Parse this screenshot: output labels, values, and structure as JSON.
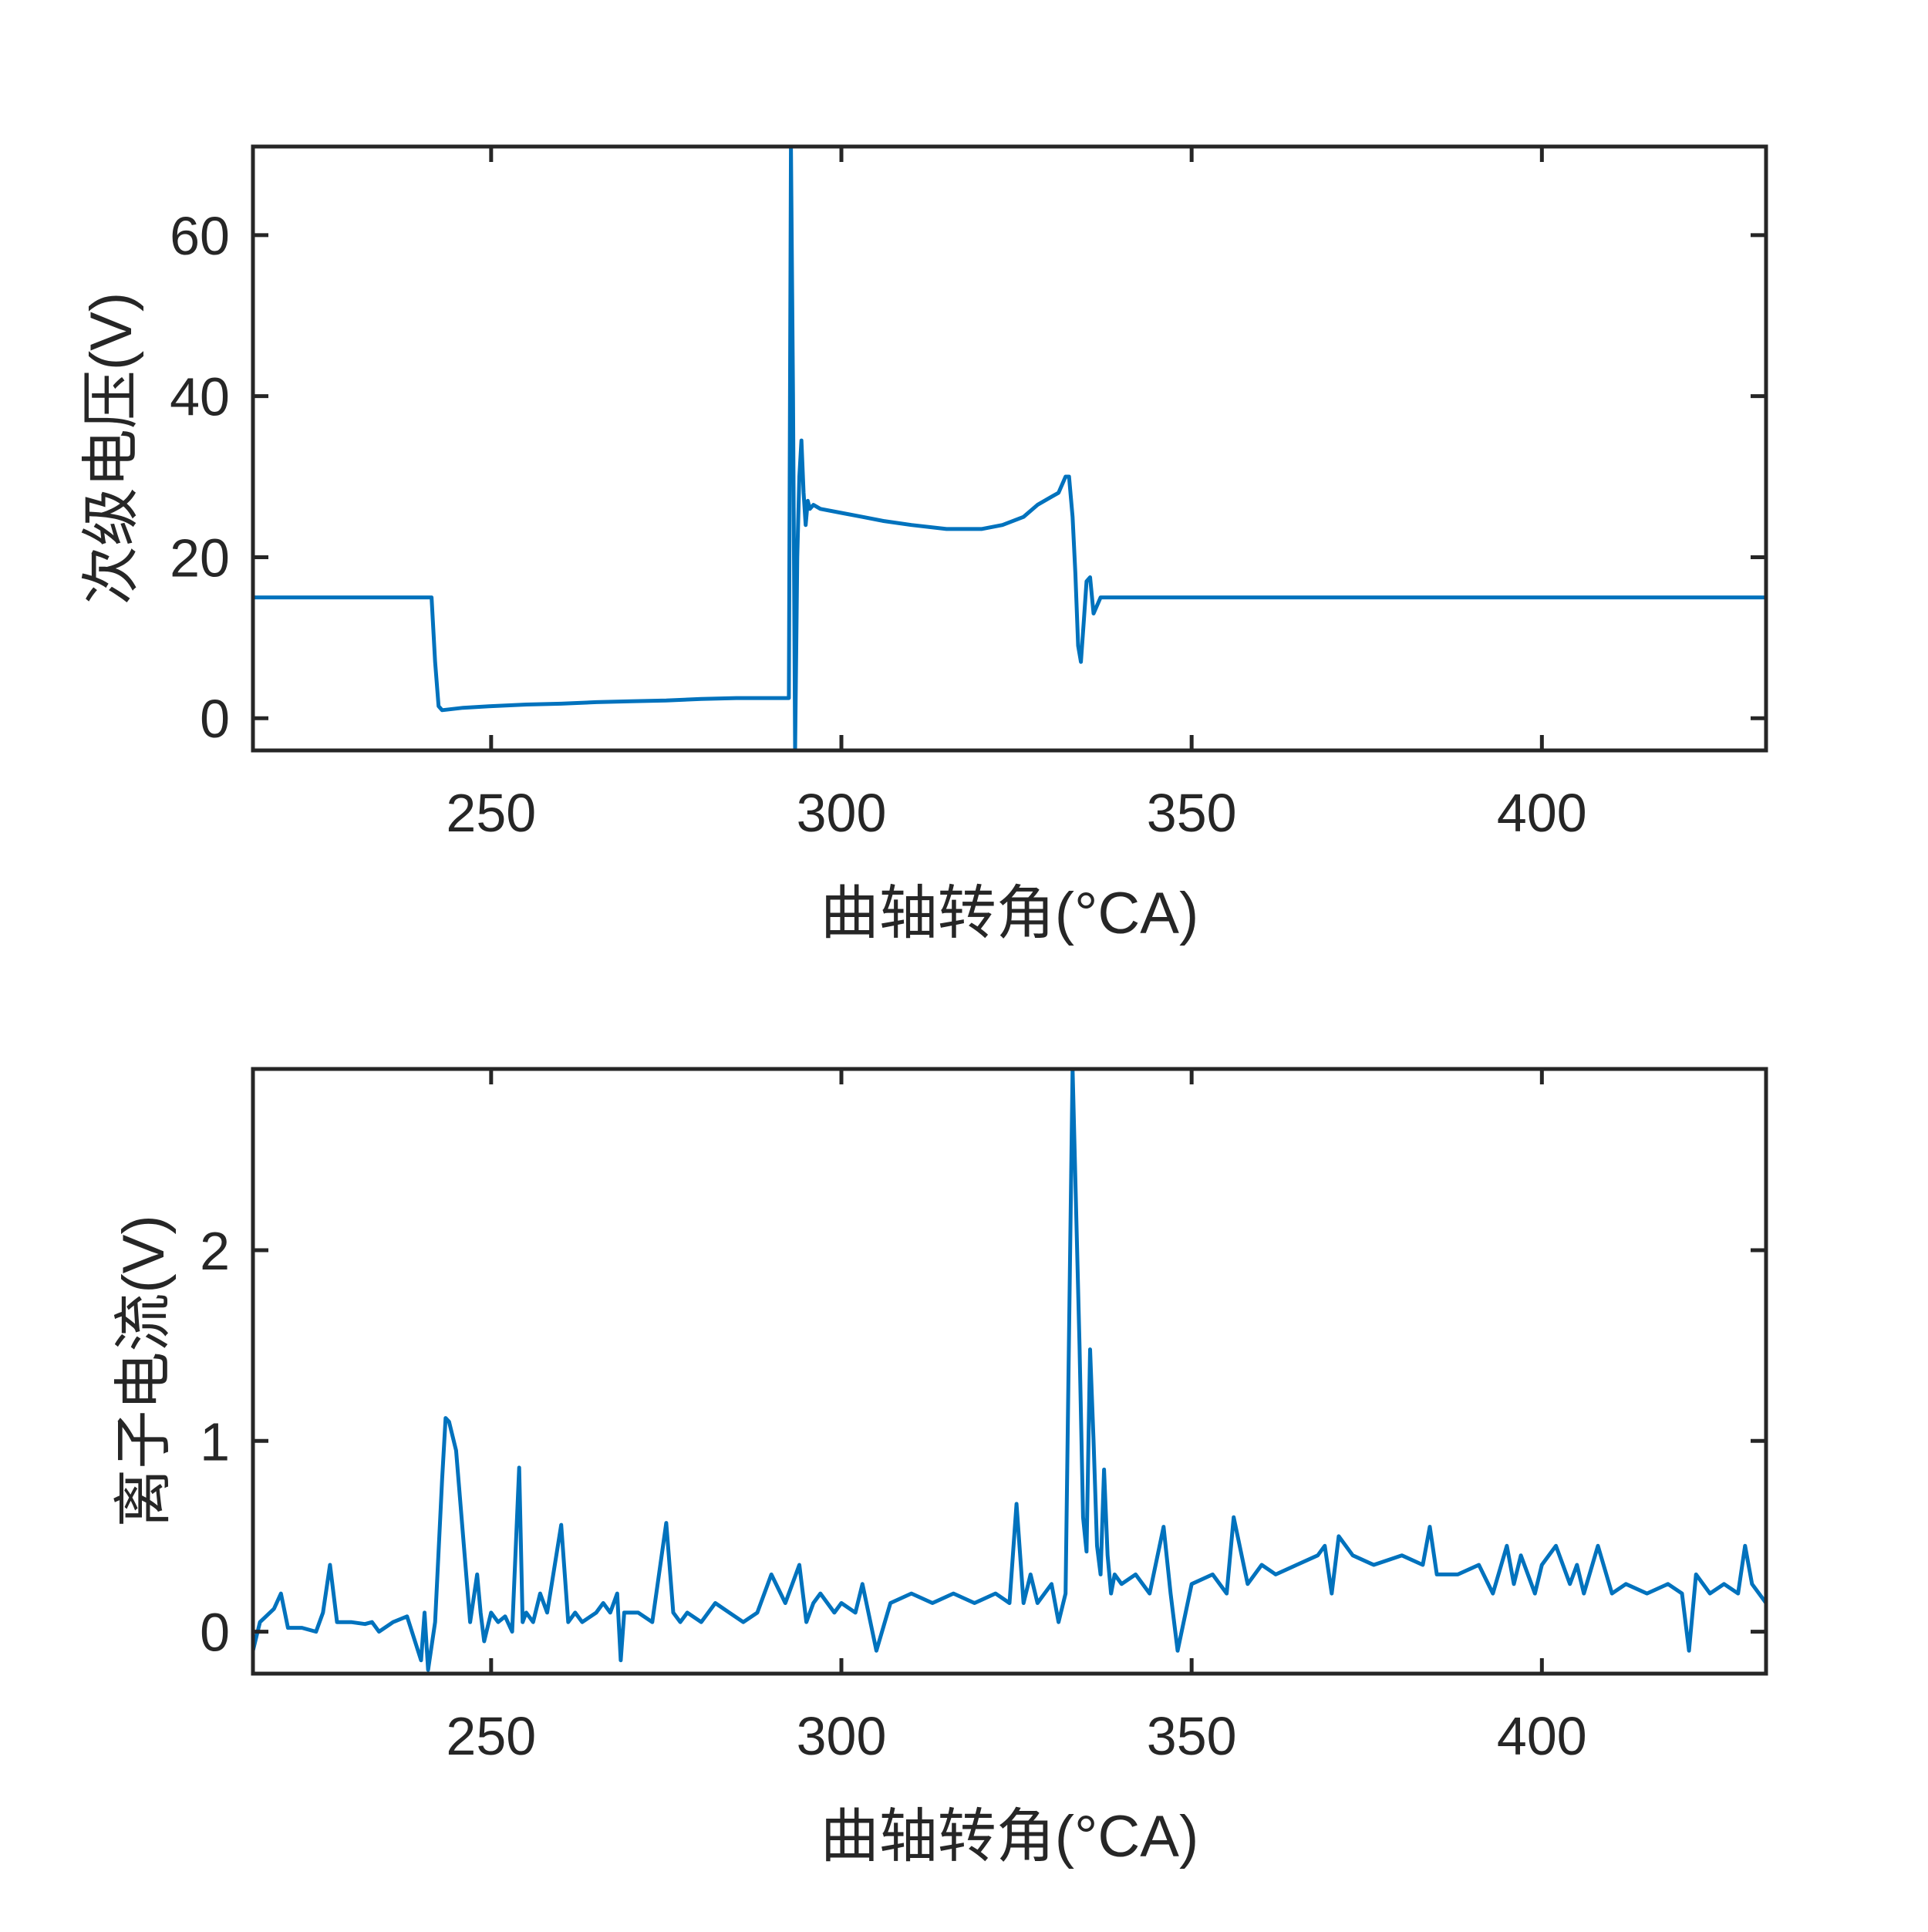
{
  "chart_data": [
    {
      "type": "line",
      "xlabel": "曲轴转角(°CA)",
      "ylabel": "次级电压(V)",
      "xlim": [
        216,
        432
      ],
      "ylim": [
        -4,
        71
      ],
      "xticks": [
        250,
        300,
        350,
        400
      ],
      "yticks": [
        0,
        20,
        40,
        60
      ],
      "grid": false,
      "legend": "none",
      "color": "#0072BD",
      "series": [
        {
          "x": [
            216,
            220,
            225,
            230,
            235,
            240,
            241.5,
            242,
            242.5,
            243,
            246,
            250,
            255,
            260,
            265,
            270,
            275,
            280,
            285,
            290,
            292.5,
            292.8,
            293.1,
            293.4,
            293.7,
            294,
            294.3,
            294.6,
            294.9,
            295.2,
            295.5,
            296,
            297,
            300,
            303,
            306,
            310,
            315,
            320,
            323,
            326,
            328,
            330,
            331,
            332,
            332.5,
            333,
            333.4,
            333.8,
            334.2,
            334.6,
            335,
            335.5,
            336,
            337,
            340,
            345,
            350,
            360,
            370,
            380,
            390,
            400,
            410,
            420,
            432
          ],
          "y": [
            15,
            15,
            15,
            15,
            15,
            15,
            15,
            7,
            1.5,
            1,
            1.3,
            1.5,
            1.7,
            1.8,
            2,
            2.1,
            2.2,
            2.4,
            2.5,
            2.5,
            2.5,
            71,
            40,
            -4,
            20,
            30,
            34.5,
            28,
            24,
            27,
            26,
            26.5,
            26,
            25.5,
            25,
            24.5,
            24,
            23.5,
            23.5,
            24,
            25,
            26.5,
            27.5,
            28,
            30,
            30,
            25,
            18,
            9,
            7,
            12,
            17,
            17.5,
            13,
            15,
            15,
            15,
            15,
            15,
            15,
            15,
            15,
            15,
            15,
            15,
            15
          ]
        }
      ]
    },
    {
      "type": "line",
      "xlabel": "曲轴转角(°CA)",
      "ylabel": "离子电流(V)",
      "xlim": [
        216,
        432
      ],
      "ylim": [
        -0.22,
        2.95
      ],
      "xticks": [
        250,
        300,
        350,
        400
      ],
      "yticks": [
        0,
        1,
        2
      ],
      "grid": false,
      "legend": "none",
      "color": "#0072BD",
      "series": [
        {
          "x": [
            216,
            217,
            219,
            220,
            221,
            223,
            225,
            226,
            227,
            228,
            230,
            232,
            233,
            234,
            236,
            238,
            240,
            240.5,
            241,
            242,
            243,
            243.5,
            244,
            245,
            246,
            247,
            248,
            248.5,
            249,
            250,
            251,
            252,
            253,
            254,
            254.5,
            255,
            256,
            257,
            258,
            260,
            261,
            262,
            263,
            265,
            266,
            267,
            268,
            268.5,
            269,
            271,
            273,
            275,
            276,
            277,
            278,
            280,
            282,
            284,
            286,
            288,
            290,
            292,
            294,
            295,
            296,
            297,
            299,
            300,
            302,
            303,
            305,
            307,
            310,
            313,
            316,
            319,
            322,
            324,
            325,
            326,
            327,
            328,
            330,
            331,
            332,
            333,
            334,
            334.5,
            335,
            335.5,
            336,
            336.5,
            337,
            337.5,
            338,
            338.5,
            339,
            340,
            342,
            344,
            346,
            347,
            348,
            350,
            353,
            355,
            356,
            358,
            360,
            362,
            365,
            368,
            369,
            370,
            371,
            373,
            376,
            380,
            383,
            384,
            385,
            388,
            391,
            393,
            395,
            396,
            397,
            399,
            400,
            402,
            404,
            405,
            406,
            408,
            410,
            412,
            415,
            418,
            420,
            421,
            422,
            424,
            426,
            428,
            429,
            430,
            432
          ],
          "y": [
            -0.1,
            0.05,
            0.12,
            0.2,
            0.02,
            0.02,
            0.0,
            0.1,
            0.35,
            0.05,
            0.05,
            0.04,
            0.05,
            0.0,
            0.05,
            0.08,
            -0.15,
            0.1,
            -0.2,
            0.05,
            0.8,
            1.12,
            1.1,
            0.95,
            0.5,
            0.05,
            0.3,
            0.1,
            -0.05,
            0.1,
            0.05,
            0.08,
            0.0,
            0.86,
            0.05,
            0.1,
            0.05,
            0.2,
            0.1,
            0.56,
            0.05,
            0.1,
            0.05,
            0.1,
            0.15,
            0.1,
            0.2,
            -0.15,
            0.1,
            0.1,
            0.05,
            0.57,
            0.1,
            0.05,
            0.1,
            0.05,
            0.15,
            0.1,
            0.05,
            0.1,
            0.3,
            0.15,
            0.35,
            0.05,
            0.15,
            0.2,
            0.1,
            0.15,
            0.1,
            0.25,
            -0.1,
            0.15,
            0.2,
            0.15,
            0.2,
            0.15,
            0.2,
            0.15,
            0.67,
            0.15,
            0.3,
            0.15,
            0.25,
            0.05,
            0.2,
            2.95,
            1.5,
            0.6,
            0.42,
            1.48,
            1.0,
            0.45,
            0.3,
            0.85,
            0.4,
            0.2,
            0.3,
            0.25,
            0.3,
            0.2,
            0.55,
            0.2,
            -0.1,
            0.25,
            0.3,
            0.2,
            0.6,
            0.25,
            0.35,
            0.3,
            0.35,
            0.4,
            0.45,
            0.2,
            0.5,
            0.4,
            0.35,
            0.4,
            0.35,
            0.55,
            0.3,
            0.3,
            0.35,
            0.2,
            0.45,
            0.25,
            0.4,
            0.2,
            0.35,
            0.45,
            0.25,
            0.35,
            0.2,
            0.45,
            0.2,
            0.25,
            0.2,
            0.25,
            0.2,
            -0.1,
            0.3,
            0.2,
            0.25,
            0.2,
            0.45,
            0.25,
            0.15
          ]
        }
      ]
    }
  ]
}
